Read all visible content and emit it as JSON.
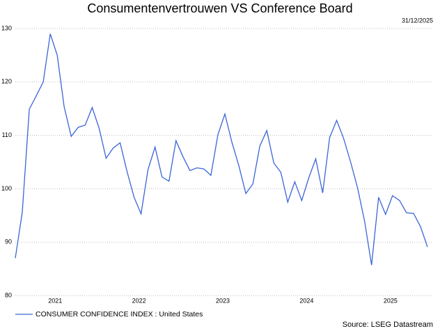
{
  "chart_data": {
    "type": "line",
    "title": "Consumentenvertrouwen VS Conference Board",
    "date_label": "31/12/2025",
    "source": "Source: LSEG Datastream",
    "categories": [
      null,
      null,
      null,
      null,
      null,
      null,
      "2021",
      null,
      null,
      null,
      null,
      null,
      null,
      null,
      null,
      null,
      null,
      null,
      "2022",
      null,
      null,
      null,
      null,
      null,
      null,
      null,
      null,
      null,
      null,
      null,
      "2023",
      null,
      null,
      null,
      null,
      null,
      null,
      null,
      null,
      null,
      null,
      null,
      "2024",
      null,
      null,
      null,
      null,
      null,
      null,
      null,
      null,
      null,
      null,
      null,
      "2025",
      null,
      null,
      null,
      null,
      null
    ],
    "series": [
      {
        "name": "CONSUMER CONFIDENCE INDEX : United States",
        "color": "#3a64d8",
        "values": [
          87.0,
          95.6,
          114.9,
          117.4,
          120.0,
          129.0,
          125.0,
          115.3,
          109.8,
          111.5,
          111.9,
          115.2,
          111.3,
          105.7,
          107.6,
          108.6,
          103.2,
          98.4,
          95.3,
          103.6,
          107.8,
          102.2,
          101.4,
          109.0,
          106.0,
          103.4,
          103.9,
          103.7,
          102.5,
          110.1,
          114.0,
          108.7,
          104.3,
          99.1,
          100.9,
          108.0,
          110.9,
          104.8,
          103.1,
          97.5,
          101.3,
          97.8,
          102.0,
          105.6,
          99.2,
          109.6,
          112.8,
          109.4,
          105.0,
          100.1,
          93.9,
          85.7,
          98.4,
          95.2,
          98.7,
          97.8,
          95.5,
          95.4,
          92.9,
          89.1
        ]
      }
    ],
    "ylim": [
      80,
      130
    ],
    "yticks": [
      80,
      90,
      100,
      110,
      120,
      130
    ],
    "grid": true
  }
}
